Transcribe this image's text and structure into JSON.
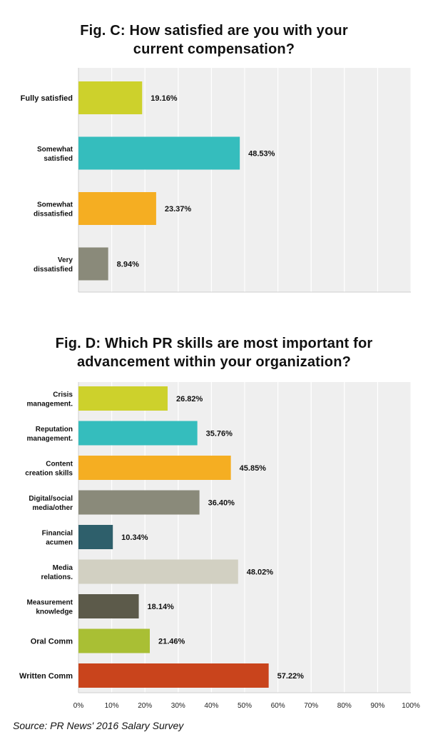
{
  "figures": {
    "fig_c_title_1": "Fig. C: How satisfied are you with your",
    "fig_c_title_2": "current compensation?",
    "fig_d_title_1": "Fig. D: Which PR skills are most important for",
    "fig_d_title_2": "advancement within your organization?"
  },
  "source": "Source: PR News' 2016 Salary Survey",
  "chart_data": [
    {
      "type": "bar",
      "orientation": "horizontal",
      "title": "Fig. C: How satisfied are you with your current compensation?",
      "categories": [
        [
          "Fully satisfied"
        ],
        [
          "Somewhat",
          "satisfied"
        ],
        [
          "Somewhat",
          "dissatisfied"
        ],
        [
          "Very",
          "dissatisfied"
        ]
      ],
      "values": [
        19.16,
        48.53,
        23.37,
        8.94
      ],
      "value_labels": [
        "19.16%",
        "48.53%",
        "23.37%",
        "8.94%"
      ],
      "colors": [
        "#cdd12c",
        "#35bdbd",
        "#f5ae22",
        "#8a8a7a"
      ],
      "xlim": [
        0,
        100
      ],
      "grid": true
    },
    {
      "type": "bar",
      "orientation": "horizontal",
      "title": "Fig. D: Which PR skills are most important for advancement within your organization?",
      "categories": [
        [
          "Crisis",
          "management."
        ],
        [
          "Reputation",
          "management."
        ],
        [
          "Content",
          "creation skills"
        ],
        [
          "Digital/social",
          "media/other"
        ],
        [
          "Financial",
          "acumen"
        ],
        [
          "Media",
          "relations."
        ],
        [
          "Measurement",
          "knowledge"
        ],
        [
          "Oral Comm"
        ],
        [
          "Written Comm"
        ]
      ],
      "values": [
        26.82,
        35.76,
        45.85,
        36.4,
        10.34,
        48.02,
        18.14,
        21.46,
        57.22
      ],
      "value_labels": [
        "26.82%",
        "35.76%",
        "45.85%",
        "36.40%",
        "10.34%",
        "48.02%",
        "18.14%",
        "21.46%",
        "57.22%"
      ],
      "colors": [
        "#cdd12c",
        "#35bdbd",
        "#f5ae22",
        "#8a8a7a",
        "#2e5f6b",
        "#d2d0c2",
        "#5c5a4a",
        "#a9bf34",
        "#c9441c"
      ],
      "xlim": [
        0,
        100
      ],
      "x_ticks": [
        "0%",
        "10%",
        "20%",
        "30%",
        "40%",
        "50%",
        "60%",
        "70%",
        "80%",
        "90%",
        "100%"
      ],
      "grid": true
    }
  ]
}
